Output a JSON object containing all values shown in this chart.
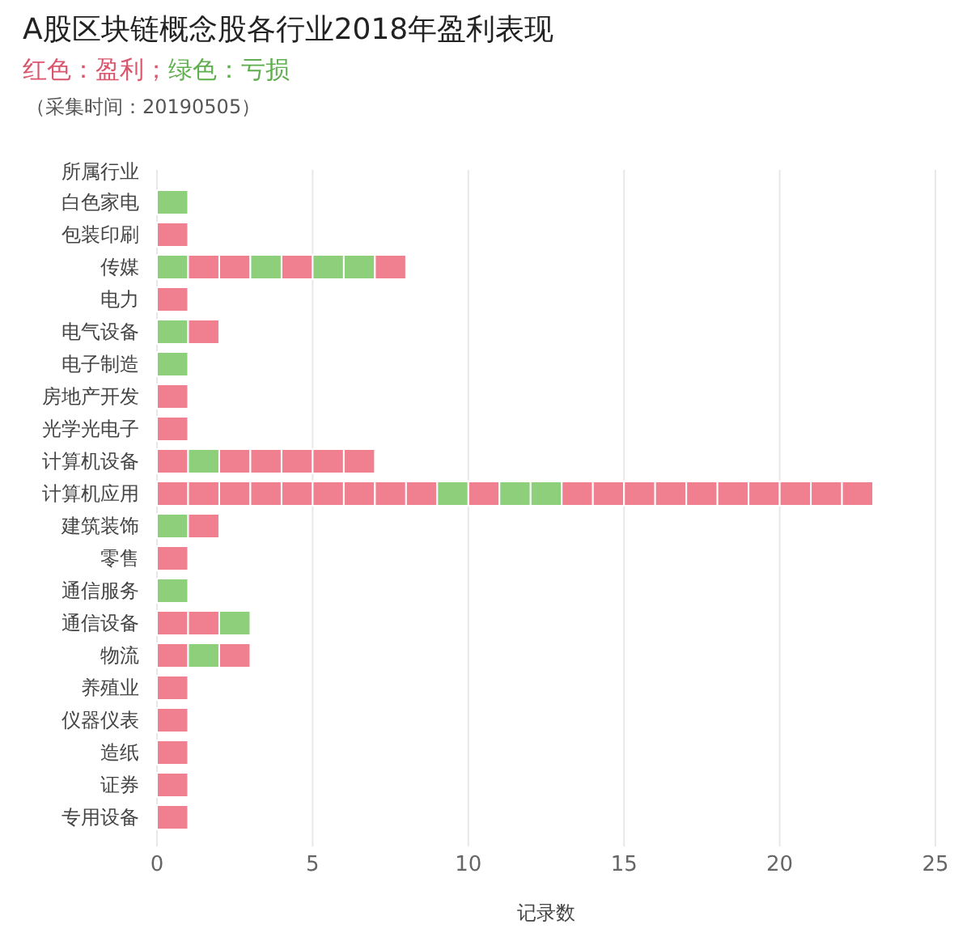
{
  "chart_data": {
    "type": "bar",
    "orientation": "horizontal",
    "stacked": true,
    "title": "A股区块链概念股各行业2018年盈利表现",
    "subtitle": "红色：盈利；绿色：亏损",
    "annotations": [
      "（采集时间：20190505）"
    ],
    "ylabel": "所属行业",
    "xlabel": "记录数",
    "xlim": [
      0,
      25
    ],
    "xticks": [
      0,
      5,
      10,
      15,
      20,
      25
    ],
    "grid": "x",
    "categories": [
      "白色家电",
      "包装印刷",
      "传媒",
      "电力",
      "电气设备",
      "电子制造",
      "房地产开发",
      "光学光电子",
      "计算机设备",
      "计算机应用",
      "建筑装饰",
      "零售",
      "通信服务",
      "通信设备",
      "物流",
      "养殖业",
      "仪器仪表",
      "造纸",
      "证券",
      "专用设备"
    ],
    "series": [
      {
        "values": [
          1,
          1,
          1,
          1,
          1,
          1,
          1,
          1,
          1,
          1,
          1,
          1,
          1,
          1,
          1,
          1,
          1,
          1,
          1,
          1
        ],
        "colors": [
          "#8dcf7b",
          "#f07f8f",
          "#8dcf7b",
          "#f07f8f",
          "#8dcf7b",
          "#8dcf7b",
          "#f07f8f",
          "#f07f8f",
          "#f07f8f",
          "#f07f8f",
          "#8dcf7b",
          "#f07f8f",
          "#8dcf7b",
          "#f07f8f",
          "#f07f8f",
          "#f07f8f",
          "#f07f8f",
          "#f07f8f",
          "#f07f8f",
          "#f07f8f"
        ]
      },
      {
        "values": [
          null,
          null,
          1,
          null,
          1,
          null,
          null,
          null,
          1,
          1,
          1,
          null,
          null,
          1,
          1,
          null,
          null,
          null,
          null,
          null
        ],
        "colors": [
          null,
          null,
          "#f07f8f",
          null,
          "#f07f8f",
          null,
          null,
          null,
          "#8dcf7b",
          "#f07f8f",
          "#f07f8f",
          null,
          null,
          "#f07f8f",
          "#8dcf7b",
          null,
          null,
          null,
          null,
          null
        ]
      },
      {
        "values": [
          null,
          null,
          1,
          null,
          null,
          null,
          null,
          null,
          1,
          1,
          null,
          null,
          null,
          1,
          1,
          null,
          null,
          null,
          null,
          null
        ],
        "colors": [
          null,
          null,
          "#f07f8f",
          null,
          null,
          null,
          null,
          null,
          "#f07f8f",
          "#f07f8f",
          null,
          null,
          null,
          "#8dcf7b",
          "#f07f8f",
          null,
          null,
          null,
          null,
          null
        ]
      },
      {
        "values": [
          null,
          null,
          1,
          null,
          null,
          null,
          null,
          null,
          1,
          1,
          null,
          null,
          null,
          null,
          null,
          null,
          null,
          null,
          null,
          null
        ],
        "colors": [
          null,
          null,
          "#8dcf7b",
          null,
          null,
          null,
          null,
          null,
          "#f07f8f",
          "#f07f8f",
          null,
          null,
          null,
          null,
          null,
          null,
          null,
          null,
          null,
          null
        ]
      },
      {
        "values": [
          null,
          null,
          1,
          null,
          null,
          null,
          null,
          null,
          1,
          1,
          null,
          null,
          null,
          null,
          null,
          null,
          null,
          null,
          null,
          null
        ],
        "colors": [
          null,
          null,
          "#f07f8f",
          null,
          null,
          null,
          null,
          null,
          "#f07f8f",
          "#f07f8f",
          null,
          null,
          null,
          null,
          null,
          null,
          null,
          null,
          null,
          null
        ]
      },
      {
        "values": [
          null,
          null,
          1,
          null,
          null,
          null,
          null,
          null,
          1,
          1,
          null,
          null,
          null,
          null,
          null,
          null,
          null,
          null,
          null,
          null
        ],
        "colors": [
          null,
          null,
          "#8dcf7b",
          null,
          null,
          null,
          null,
          null,
          "#f07f8f",
          "#f07f8f",
          null,
          null,
          null,
          null,
          null,
          null,
          null,
          null,
          null,
          null
        ]
      },
      {
        "values": [
          null,
          null,
          1,
          null,
          null,
          null,
          null,
          null,
          1,
          1,
          null,
          null,
          null,
          null,
          null,
          null,
          null,
          null,
          null,
          null
        ],
        "colors": [
          null,
          null,
          "#8dcf7b",
          null,
          null,
          null,
          null,
          null,
          "#f07f8f",
          "#f07f8f",
          null,
          null,
          null,
          null,
          null,
          null,
          null,
          null,
          null,
          null
        ]
      },
      {
        "values": [
          null,
          null,
          1,
          null,
          null,
          null,
          null,
          null,
          null,
          1,
          null,
          null,
          null,
          null,
          null,
          null,
          null,
          null,
          null,
          null
        ],
        "colors": [
          null,
          null,
          "#f07f8f",
          null,
          null,
          null,
          null,
          null,
          null,
          "#f07f8f",
          null,
          null,
          null,
          null,
          null,
          null,
          null,
          null,
          null,
          null
        ]
      },
      {
        "values": [
          null,
          null,
          null,
          null,
          null,
          null,
          null,
          null,
          null,
          1,
          null,
          null,
          null,
          null,
          null,
          null,
          null,
          null,
          null,
          null
        ],
        "colors": [
          null,
          null,
          null,
          null,
          null,
          null,
          null,
          null,
          null,
          "#f07f8f",
          null,
          null,
          null,
          null,
          null,
          null,
          null,
          null,
          null,
          null
        ]
      },
      {
        "values": [
          null,
          null,
          null,
          null,
          null,
          null,
          null,
          null,
          null,
          1,
          null,
          null,
          null,
          null,
          null,
          null,
          null,
          null,
          null,
          null
        ],
        "colors": [
          null,
          null,
          null,
          null,
          null,
          null,
          null,
          null,
          null,
          "#8dcf7b",
          null,
          null,
          null,
          null,
          null,
          null,
          null,
          null,
          null,
          null
        ]
      },
      {
        "values": [
          null,
          null,
          null,
          null,
          null,
          null,
          null,
          null,
          null,
          1,
          null,
          null,
          null,
          null,
          null,
          null,
          null,
          null,
          null,
          null
        ],
        "colors": [
          null,
          null,
          null,
          null,
          null,
          null,
          null,
          null,
          null,
          "#f07f8f",
          null,
          null,
          null,
          null,
          null,
          null,
          null,
          null,
          null,
          null
        ]
      },
      {
        "values": [
          null,
          null,
          null,
          null,
          null,
          null,
          null,
          null,
          null,
          1,
          null,
          null,
          null,
          null,
          null,
          null,
          null,
          null,
          null,
          null
        ],
        "colors": [
          null,
          null,
          null,
          null,
          null,
          null,
          null,
          null,
          null,
          "#8dcf7b",
          null,
          null,
          null,
          null,
          null,
          null,
          null,
          null,
          null,
          null
        ]
      },
      {
        "values": [
          null,
          null,
          null,
          null,
          null,
          null,
          null,
          null,
          null,
          1,
          null,
          null,
          null,
          null,
          null,
          null,
          null,
          null,
          null,
          null
        ],
        "colors": [
          null,
          null,
          null,
          null,
          null,
          null,
          null,
          null,
          null,
          "#8dcf7b",
          null,
          null,
          null,
          null,
          null,
          null,
          null,
          null,
          null,
          null
        ]
      },
      {
        "values": [
          null,
          null,
          null,
          null,
          null,
          null,
          null,
          null,
          null,
          1,
          null,
          null,
          null,
          null,
          null,
          null,
          null,
          null,
          null,
          null
        ],
        "colors": [
          null,
          null,
          null,
          null,
          null,
          null,
          null,
          null,
          null,
          "#f07f8f",
          null,
          null,
          null,
          null,
          null,
          null,
          null,
          null,
          null,
          null
        ]
      },
      {
        "values": [
          null,
          null,
          null,
          null,
          null,
          null,
          null,
          null,
          null,
          1,
          null,
          null,
          null,
          null,
          null,
          null,
          null,
          null,
          null,
          null
        ],
        "colors": [
          null,
          null,
          null,
          null,
          null,
          null,
          null,
          null,
          null,
          "#f07f8f",
          null,
          null,
          null,
          null,
          null,
          null,
          null,
          null,
          null,
          null
        ]
      },
      {
        "values": [
          null,
          null,
          null,
          null,
          null,
          null,
          null,
          null,
          null,
          1,
          null,
          null,
          null,
          null,
          null,
          null,
          null,
          null,
          null,
          null
        ],
        "colors": [
          null,
          null,
          null,
          null,
          null,
          null,
          null,
          null,
          null,
          "#f07f8f",
          null,
          null,
          null,
          null,
          null,
          null,
          null,
          null,
          null,
          null
        ]
      },
      {
        "values": [
          null,
          null,
          null,
          null,
          null,
          null,
          null,
          null,
          null,
          1,
          null,
          null,
          null,
          null,
          null,
          null,
          null,
          null,
          null,
          null
        ],
        "colors": [
          null,
          null,
          null,
          null,
          null,
          null,
          null,
          null,
          null,
          "#f07f8f",
          null,
          null,
          null,
          null,
          null,
          null,
          null,
          null,
          null,
          null
        ]
      },
      {
        "values": [
          null,
          null,
          null,
          null,
          null,
          null,
          null,
          null,
          null,
          1,
          null,
          null,
          null,
          null,
          null,
          null,
          null,
          null,
          null,
          null
        ],
        "colors": [
          null,
          null,
          null,
          null,
          null,
          null,
          null,
          null,
          null,
          "#f07f8f",
          null,
          null,
          null,
          null,
          null,
          null,
          null,
          null,
          null,
          null
        ]
      },
      {
        "values": [
          null,
          null,
          null,
          null,
          null,
          null,
          null,
          null,
          null,
          1,
          null,
          null,
          null,
          null,
          null,
          null,
          null,
          null,
          null,
          null
        ],
        "colors": [
          null,
          null,
          null,
          null,
          null,
          null,
          null,
          null,
          null,
          "#f07f8f",
          null,
          null,
          null,
          null,
          null,
          null,
          null,
          null,
          null,
          null
        ]
      },
      {
        "values": [
          null,
          null,
          null,
          null,
          null,
          null,
          null,
          null,
          null,
          1,
          null,
          null,
          null,
          null,
          null,
          null,
          null,
          null,
          null,
          null
        ],
        "colors": [
          null,
          null,
          null,
          null,
          null,
          null,
          null,
          null,
          null,
          "#f07f8f",
          null,
          null,
          null,
          null,
          null,
          null,
          null,
          null,
          null,
          null
        ]
      },
      {
        "values": [
          null,
          null,
          null,
          null,
          null,
          null,
          null,
          null,
          null,
          1,
          null,
          null,
          null,
          null,
          null,
          null,
          null,
          null,
          null,
          null
        ],
        "colors": [
          null,
          null,
          null,
          null,
          null,
          null,
          null,
          null,
          null,
          "#f07f8f",
          null,
          null,
          null,
          null,
          null,
          null,
          null,
          null,
          null,
          null
        ]
      },
      {
        "values": [
          null,
          null,
          null,
          null,
          null,
          null,
          null,
          null,
          null,
          1,
          null,
          null,
          null,
          null,
          null,
          null,
          null,
          null,
          null,
          null
        ],
        "colors": [
          null,
          null,
          null,
          null,
          null,
          null,
          null,
          null,
          null,
          "#f07f8f",
          null,
          null,
          null,
          null,
          null,
          null,
          null,
          null,
          null,
          null
        ]
      },
      {
        "values": [
          null,
          null,
          null,
          null,
          null,
          null,
          null,
          null,
          null,
          1,
          null,
          null,
          null,
          null,
          null,
          null,
          null,
          null,
          null,
          null
        ],
        "colors": [
          null,
          null,
          null,
          null,
          null,
          null,
          null,
          null,
          null,
          "#f07f8f",
          null,
          null,
          null,
          null,
          null,
          null,
          null,
          null,
          null,
          null
        ]
      }
    ]
  }
}
